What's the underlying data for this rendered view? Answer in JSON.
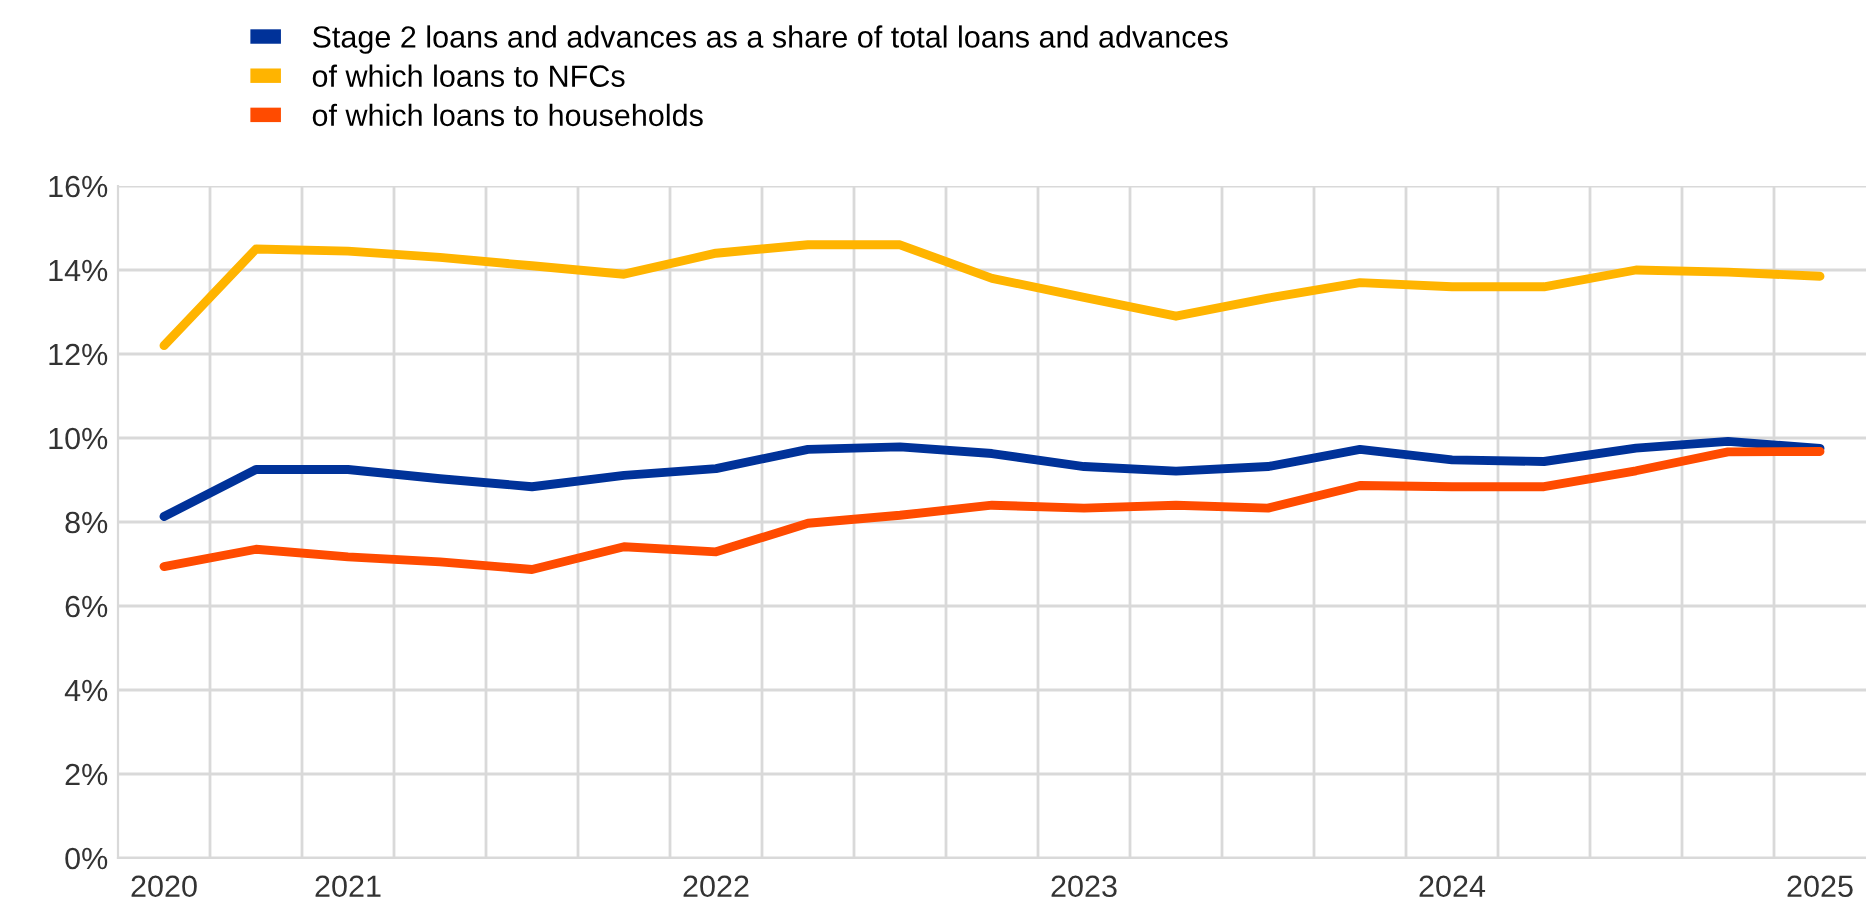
{
  "chart_data": {
    "type": "line",
    "categories": [
      "2020",
      null,
      "2021",
      null,
      null,
      null,
      "2022",
      null,
      null,
      null,
      "2023",
      null,
      null,
      null,
      "2024",
      null,
      null,
      null,
      "2025"
    ],
    "series": [
      {
        "name": "Stage 2 loans and advances as a share of total loans and advances",
        "color": "#003299",
        "values": [
          8.13,
          9.25,
          9.25,
          9.03,
          8.84,
          9.11,
          9.27,
          9.73,
          9.79,
          9.63,
          9.32,
          9.21,
          9.32,
          9.73,
          9.48,
          9.44,
          9.76,
          9.92,
          9.75
        ]
      },
      {
        "name": "of which loans to NFCs",
        "color": "#ffb400",
        "values": [
          12.2,
          14.5,
          14.45,
          14.3,
          14.1,
          13.9,
          14.4,
          14.6,
          14.6,
          13.8,
          13.35,
          12.9,
          13.33,
          13.7,
          13.6,
          13.6,
          14.0,
          13.95,
          13.85
        ]
      },
      {
        "name": "of which loans to households",
        "color": "#ff4b00",
        "values": [
          6.94,
          7.35,
          7.17,
          7.05,
          6.87,
          7.41,
          7.29,
          7.97,
          8.16,
          8.4,
          8.33,
          8.4,
          8.33,
          8.87,
          8.84,
          8.84,
          9.22,
          9.67,
          9.68
        ]
      }
    ],
    "ylim": [
      0,
      16
    ],
    "yticks": [
      {
        "value": 0,
        "label": "0%"
      },
      {
        "value": 2,
        "label": "2%"
      },
      {
        "value": 4,
        "label": "4%"
      },
      {
        "value": 6,
        "label": "6%"
      },
      {
        "value": 8,
        "label": "8%"
      },
      {
        "value": 10,
        "label": "10%"
      },
      {
        "value": 12,
        "label": "12%"
      },
      {
        "value": 14,
        "label": "14%"
      },
      {
        "value": 16,
        "label": "16%"
      }
    ],
    "grid": true,
    "legend": "top left",
    "line_style": "solid",
    "marker": "none"
  }
}
